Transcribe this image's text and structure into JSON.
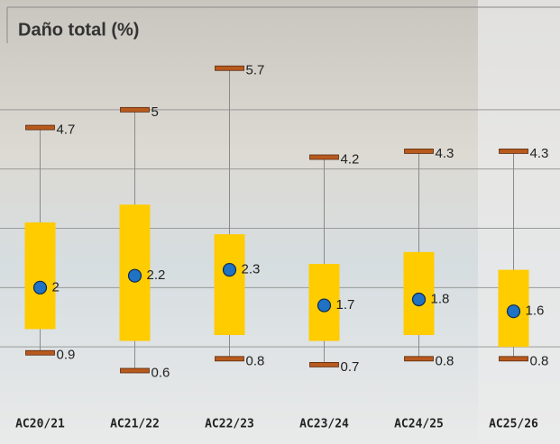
{
  "chart_data": {
    "type": "range-box",
    "title": "Daño total (%)",
    "categories": [
      "AC20/21",
      "AC21/22",
      "AC22/23",
      "AC23/24",
      "AC24/25",
      "AC25/26"
    ],
    "max": [
      4.7,
      5,
      5.7,
      4.2,
      4.3,
      4.3
    ],
    "min": [
      0.9,
      0.6,
      0.8,
      0.7,
      0.8,
      0.8
    ],
    "mean": [
      2,
      2.2,
      2.3,
      1.7,
      1.8,
      1.6
    ],
    "box_high": [
      3.1,
      3.4,
      2.9,
      2.4,
      2.6,
      2.3
    ],
    "box_low": [
      1.3,
      1.1,
      1.2,
      1.1,
      1.2,
      1.0
    ],
    "ylim": [
      0,
      6
    ],
    "yticks": [
      1,
      2,
      3,
      4,
      5
    ],
    "grid": true,
    "box_color": "#ffcc00",
    "cap_color": "#b85a1e",
    "mean_color": "#1f72c4",
    "whisker_color": "#8a8a8a"
  }
}
